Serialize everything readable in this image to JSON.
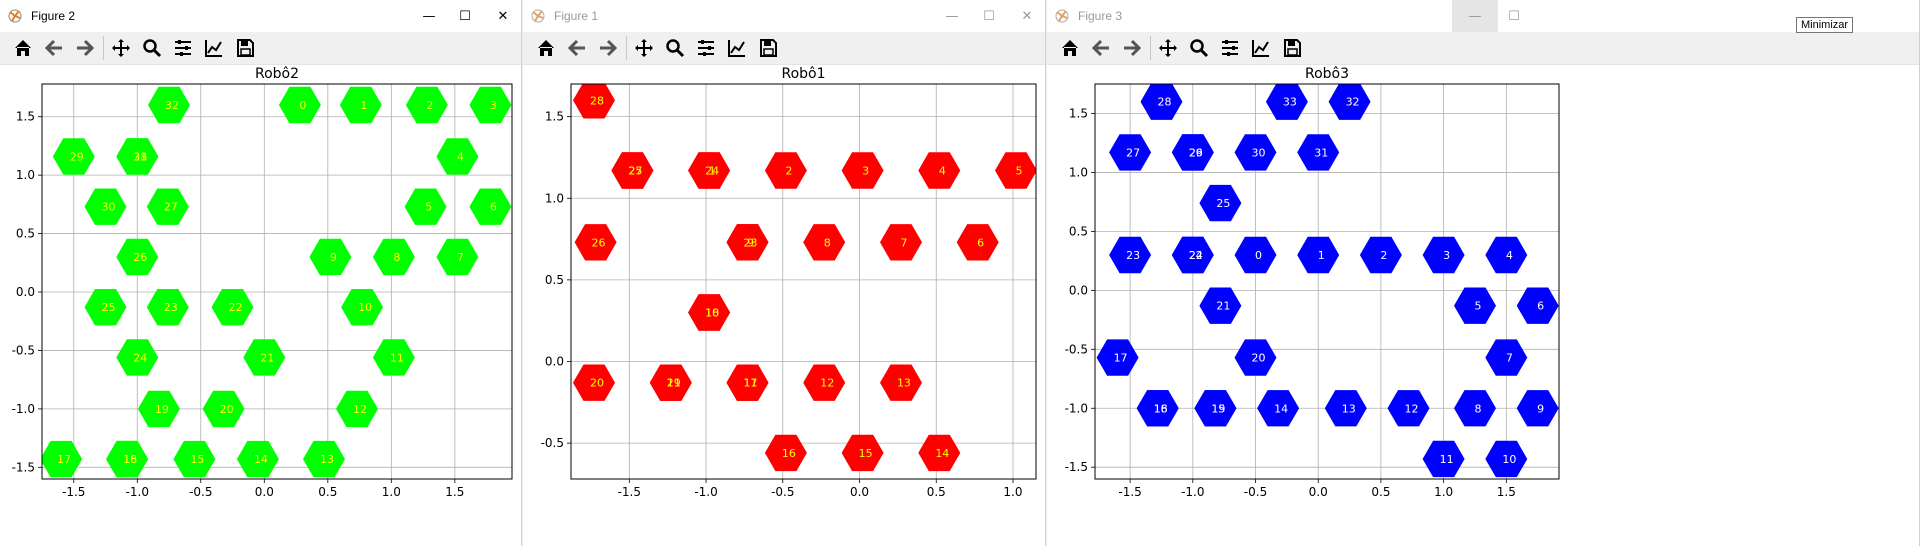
{
  "windows": [
    {
      "title": "Figure 2",
      "active": true,
      "chart_data": {
        "type": "scatter",
        "title": "Robô2",
        "marker": "hexagon",
        "color": "#00ff00",
        "label_color": "#ffff00",
        "xlim": [
          -1.75,
          1.95
        ],
        "ylim": [
          -1.6,
          1.78
        ],
        "xticks": [
          "-1.5",
          "-1.0",
          "-0.5",
          "0.0",
          "0.5",
          "1.0",
          "1.5"
        ],
        "xtick_values": [
          -1.5,
          -1.0,
          -0.5,
          0.0,
          0.5,
          1.0,
          1.5
        ],
        "yticks": [
          "-1.5",
          "-1.0",
          "-0.5",
          "0.0",
          "0.5",
          "1.0",
          "1.5"
        ],
        "ytick_values": [
          -1.5,
          -1.0,
          -0.5,
          0.0,
          0.5,
          1.0,
          1.5
        ],
        "grid": true,
        "points": [
          {
            "x": -0.75,
            "y": 1.6,
            "label": "32"
          },
          {
            "x": 0.28,
            "y": 1.6,
            "label": "0"
          },
          {
            "x": 0.76,
            "y": 1.6,
            "label": "1"
          },
          {
            "x": 1.28,
            "y": 1.6,
            "label": "2"
          },
          {
            "x": 1.78,
            "y": 1.6,
            "label": "3"
          },
          {
            "x": -1.5,
            "y": 1.16,
            "label": "29"
          },
          {
            "x": -1.0,
            "y": 1.16,
            "label": "31"
          },
          {
            "x": -1.0,
            "y": 1.16,
            "label": "28"
          },
          {
            "x": 1.52,
            "y": 1.16,
            "label": "4"
          },
          {
            "x": -1.25,
            "y": 0.73,
            "label": "30"
          },
          {
            "x": -0.76,
            "y": 0.73,
            "label": "27"
          },
          {
            "x": 1.27,
            "y": 0.73,
            "label": "5"
          },
          {
            "x": 1.78,
            "y": 0.73,
            "label": "6"
          },
          {
            "x": -1.0,
            "y": 0.3,
            "label": "26"
          },
          {
            "x": 0.52,
            "y": 0.3,
            "label": "9"
          },
          {
            "x": 1.02,
            "y": 0.3,
            "label": "8"
          },
          {
            "x": 1.52,
            "y": 0.3,
            "label": "7"
          },
          {
            "x": -1.25,
            "y": -0.13,
            "label": "25"
          },
          {
            "x": -0.76,
            "y": -0.13,
            "label": "23"
          },
          {
            "x": -0.25,
            "y": -0.13,
            "label": "22"
          },
          {
            "x": 0.77,
            "y": -0.13,
            "label": "10"
          },
          {
            "x": -1.0,
            "y": -0.56,
            "label": "24"
          },
          {
            "x": 0.0,
            "y": -0.56,
            "label": "21"
          },
          {
            "x": 1.02,
            "y": -0.56,
            "label": "11"
          },
          {
            "x": -0.83,
            "y": -1.0,
            "label": "19"
          },
          {
            "x": -0.32,
            "y": -1.0,
            "label": "20"
          },
          {
            "x": 0.73,
            "y": -1.0,
            "label": "12"
          },
          {
            "x": -1.6,
            "y": -1.43,
            "label": "17"
          },
          {
            "x": -1.08,
            "y": -1.43,
            "label": "16"
          },
          {
            "x": -1.08,
            "y": -1.43,
            "label": "18"
          },
          {
            "x": -0.55,
            "y": -1.43,
            "label": "15"
          },
          {
            "x": -0.05,
            "y": -1.43,
            "label": "14"
          },
          {
            "x": 0.47,
            "y": -1.43,
            "label": "13"
          }
        ]
      }
    },
    {
      "title": "Figure 1",
      "active": false,
      "chart_data": {
        "type": "scatter",
        "title": "Robô1",
        "marker": "hexagon",
        "color": "#ff0000",
        "label_color": "#ffff00",
        "xlim": [
          -1.88,
          1.15
        ],
        "ylim": [
          -0.72,
          1.7
        ],
        "xticks": [
          "-1.5",
          "-1.0",
          "-0.5",
          "0.0",
          "0.5",
          "1.0"
        ],
        "xtick_values": [
          -1.5,
          -1.0,
          -0.5,
          0.0,
          0.5,
          1.0
        ],
        "yticks": [
          "-0.5",
          "0.0",
          "0.5",
          "1.0",
          "1.5"
        ],
        "ytick_values": [
          -0.5,
          0.0,
          0.5,
          1.0,
          1.5
        ],
        "grid": true,
        "points": [
          {
            "x": -1.73,
            "y": 1.6,
            "label": "28"
          },
          {
            "x": -1.48,
            "y": 1.17,
            "label": "27"
          },
          {
            "x": -1.48,
            "y": 1.17,
            "label": "25"
          },
          {
            "x": -0.98,
            "y": 1.17,
            "label": "1"
          },
          {
            "x": -0.98,
            "y": 1.17,
            "label": "24"
          },
          {
            "x": -0.48,
            "y": 1.17,
            "label": "2"
          },
          {
            "x": 0.02,
            "y": 1.17,
            "label": "3"
          },
          {
            "x": 0.52,
            "y": 1.17,
            "label": "4"
          },
          {
            "x": 1.02,
            "y": 1.17,
            "label": "5"
          },
          {
            "x": -1.72,
            "y": 0.73,
            "label": "26"
          },
          {
            "x": -0.73,
            "y": 0.73,
            "label": "9"
          },
          {
            "x": -0.73,
            "y": 0.73,
            "label": "23"
          },
          {
            "x": -0.23,
            "y": 0.73,
            "label": "8"
          },
          {
            "x": 0.27,
            "y": 0.73,
            "label": "7"
          },
          {
            "x": 0.77,
            "y": 0.73,
            "label": "6"
          },
          {
            "x": -0.98,
            "y": 0.3,
            "label": "10"
          },
          {
            "x": -0.98,
            "y": 0.3,
            "label": "18"
          },
          {
            "x": -1.73,
            "y": -0.13,
            "label": "20"
          },
          {
            "x": -1.23,
            "y": -0.13,
            "label": "19"
          },
          {
            "x": -1.23,
            "y": -0.13,
            "label": "21"
          },
          {
            "x": -0.73,
            "y": -0.13,
            "label": "11"
          },
          {
            "x": -0.73,
            "y": -0.13,
            "label": "17"
          },
          {
            "x": -0.23,
            "y": -0.13,
            "label": "12"
          },
          {
            "x": 0.27,
            "y": -0.13,
            "label": "13"
          },
          {
            "x": -0.48,
            "y": -0.56,
            "label": "16"
          },
          {
            "x": 0.02,
            "y": -0.56,
            "label": "15"
          },
          {
            "x": 0.52,
            "y": -0.56,
            "label": "14"
          }
        ]
      }
    },
    {
      "title": "Figure 3",
      "active": false,
      "tooltip": "Minimizar",
      "chart_data": {
        "type": "scatter",
        "title": "Robô3",
        "marker": "hexagon",
        "color": "#0000ff",
        "label_color": "#ffffff",
        "xlim": [
          -1.78,
          1.92
        ],
        "ylim": [
          -1.6,
          1.75
        ],
        "xticks": [
          "-1.5",
          "-1.0",
          "-0.5",
          "0.0",
          "0.5",
          "1.0",
          "1.5"
        ],
        "xtick_values": [
          -1.5,
          -1.0,
          -0.5,
          0.0,
          0.5,
          1.0,
          1.5
        ],
        "yticks": [
          "-1.5",
          "-1.0",
          "-0.5",
          "0.0",
          "0.5",
          "1.0",
          "1.5"
        ],
        "ytick_values": [
          -1.5,
          -1.0,
          -0.5,
          0.0,
          0.5,
          1.0,
          1.5
        ],
        "grid": true,
        "points": [
          {
            "x": -1.25,
            "y": 1.6,
            "label": "28"
          },
          {
            "x": -0.25,
            "y": 1.6,
            "label": "33"
          },
          {
            "x": 0.25,
            "y": 1.6,
            "label": "32"
          },
          {
            "x": -1.5,
            "y": 1.17,
            "label": "27"
          },
          {
            "x": -1.0,
            "y": 1.17,
            "label": "29"
          },
          {
            "x": -1.0,
            "y": 1.17,
            "label": "26"
          },
          {
            "x": -0.5,
            "y": 1.17,
            "label": "30"
          },
          {
            "x": 0.0,
            "y": 1.17,
            "label": "31"
          },
          {
            "x": -0.78,
            "y": 0.74,
            "label": "25"
          },
          {
            "x": -1.5,
            "y": 0.3,
            "label": "23"
          },
          {
            "x": -1.0,
            "y": 0.3,
            "label": "22"
          },
          {
            "x": -1.0,
            "y": 0.3,
            "label": "24"
          },
          {
            "x": -0.5,
            "y": 0.3,
            "label": "0"
          },
          {
            "x": 0.0,
            "y": 0.3,
            "label": "1"
          },
          {
            "x": 0.5,
            "y": 0.3,
            "label": "2"
          },
          {
            "x": 1.0,
            "y": 0.3,
            "label": "3"
          },
          {
            "x": 1.5,
            "y": 0.3,
            "label": "4"
          },
          {
            "x": -0.78,
            "y": -0.13,
            "label": "21"
          },
          {
            "x": 1.25,
            "y": -0.13,
            "label": "5"
          },
          {
            "x": 1.75,
            "y": -0.13,
            "label": "6"
          },
          {
            "x": -1.6,
            "y": -0.57,
            "label": "17"
          },
          {
            "x": -0.5,
            "y": -0.57,
            "label": "20"
          },
          {
            "x": 1.5,
            "y": -0.57,
            "label": "7"
          },
          {
            "x": -1.28,
            "y": -1.0,
            "label": "16"
          },
          {
            "x": -1.28,
            "y": -1.0,
            "label": "18"
          },
          {
            "x": -0.82,
            "y": -1.0,
            "label": "15"
          },
          {
            "x": -0.82,
            "y": -1.0,
            "label": "19"
          },
          {
            "x": -0.32,
            "y": -1.0,
            "label": "14"
          },
          {
            "x": 0.22,
            "y": -1.0,
            "label": "13"
          },
          {
            "x": 0.72,
            "y": -1.0,
            "label": "12"
          },
          {
            "x": 1.25,
            "y": -1.0,
            "label": "8"
          },
          {
            "x": 1.75,
            "y": -1.0,
            "label": "9"
          },
          {
            "x": 1.0,
            "y": -1.43,
            "label": "11"
          },
          {
            "x": 1.5,
            "y": -1.43,
            "label": "10"
          }
        ]
      }
    }
  ]
}
